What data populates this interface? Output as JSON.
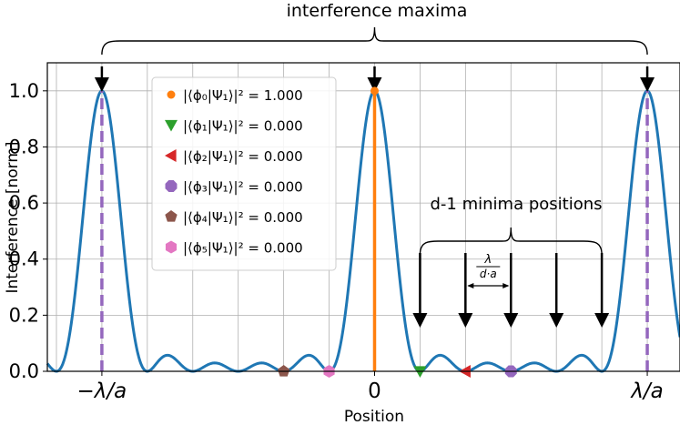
{
  "chart_data": {
    "type": "line",
    "title": "interference maxima",
    "xlabel": "Position",
    "ylabel": "Interference [norm]",
    "xlim": [
      -1.2,
      1.12
    ],
    "ylim": [
      0,
      1.1
    ],
    "xticks": [
      {
        "value": -1,
        "label": "−λ/a"
      },
      {
        "value": 0,
        "label": "0"
      },
      {
        "value": 1,
        "label": "λ/a"
      }
    ],
    "yticks": [
      {
        "value": 0.0,
        "label": "0.0"
      },
      {
        "value": 0.2,
        "label": "0.2"
      },
      {
        "value": 0.4,
        "label": "0.4"
      },
      {
        "value": 0.6,
        "label": "0.6"
      },
      {
        "value": 0.8,
        "label": "0.8"
      },
      {
        "value": 1.0,
        "label": "1.0"
      }
    ],
    "grid": true,
    "curve": {
      "color": "#1f77b4",
      "slits": 6
    },
    "principal_maxima_x": [
      -1,
      1
    ],
    "principal_maxima_color": "#9467bd",
    "markers": [
      {
        "label": "|⟨ϕ₀|Ψ₁⟩|² = 1.000",
        "x": 0,
        "y": 1.0,
        "shape": "circle",
        "color": "#ff7f0e",
        "stem": true
      },
      {
        "label": "|⟨ϕ₁|Ψ₁⟩|² = 0.000",
        "x": 0.1667,
        "y": 0,
        "shape": "triangle-down",
        "color": "#2ca02c"
      },
      {
        "label": "|⟨ϕ₂|Ψ₁⟩|² = 0.000",
        "x": 0.3333,
        "y": 0,
        "shape": "triangle-left",
        "color": "#d62728"
      },
      {
        "label": "|⟨ϕ₃|Ψ₁⟩|² = 0.000",
        "x": 0.5,
        "y": 0,
        "shape": "octagon",
        "color": "#9467bd"
      },
      {
        "label": "|⟨ϕ₄|Ψ₁⟩|² = 0.000",
        "x": -0.3333,
        "y": 0,
        "shape": "pentagon",
        "color": "#8c564b"
      },
      {
        "label": "|⟨ϕ₅|Ψ₁⟩|² = 0.000",
        "x": -0.1667,
        "y": 0,
        "shape": "hexagon",
        "color": "#e377c2"
      }
    ],
    "legend_placement": "upper-left",
    "annotations": {
      "maxima_label": "interference maxima",
      "minima_label": "d-1 minima positions",
      "spacing_numerator": "λ",
      "spacing_denominator": "d·a",
      "minima_arrows_x": [
        0.1667,
        0.3333,
        0.5,
        0.6667,
        0.8333
      ]
    }
  }
}
